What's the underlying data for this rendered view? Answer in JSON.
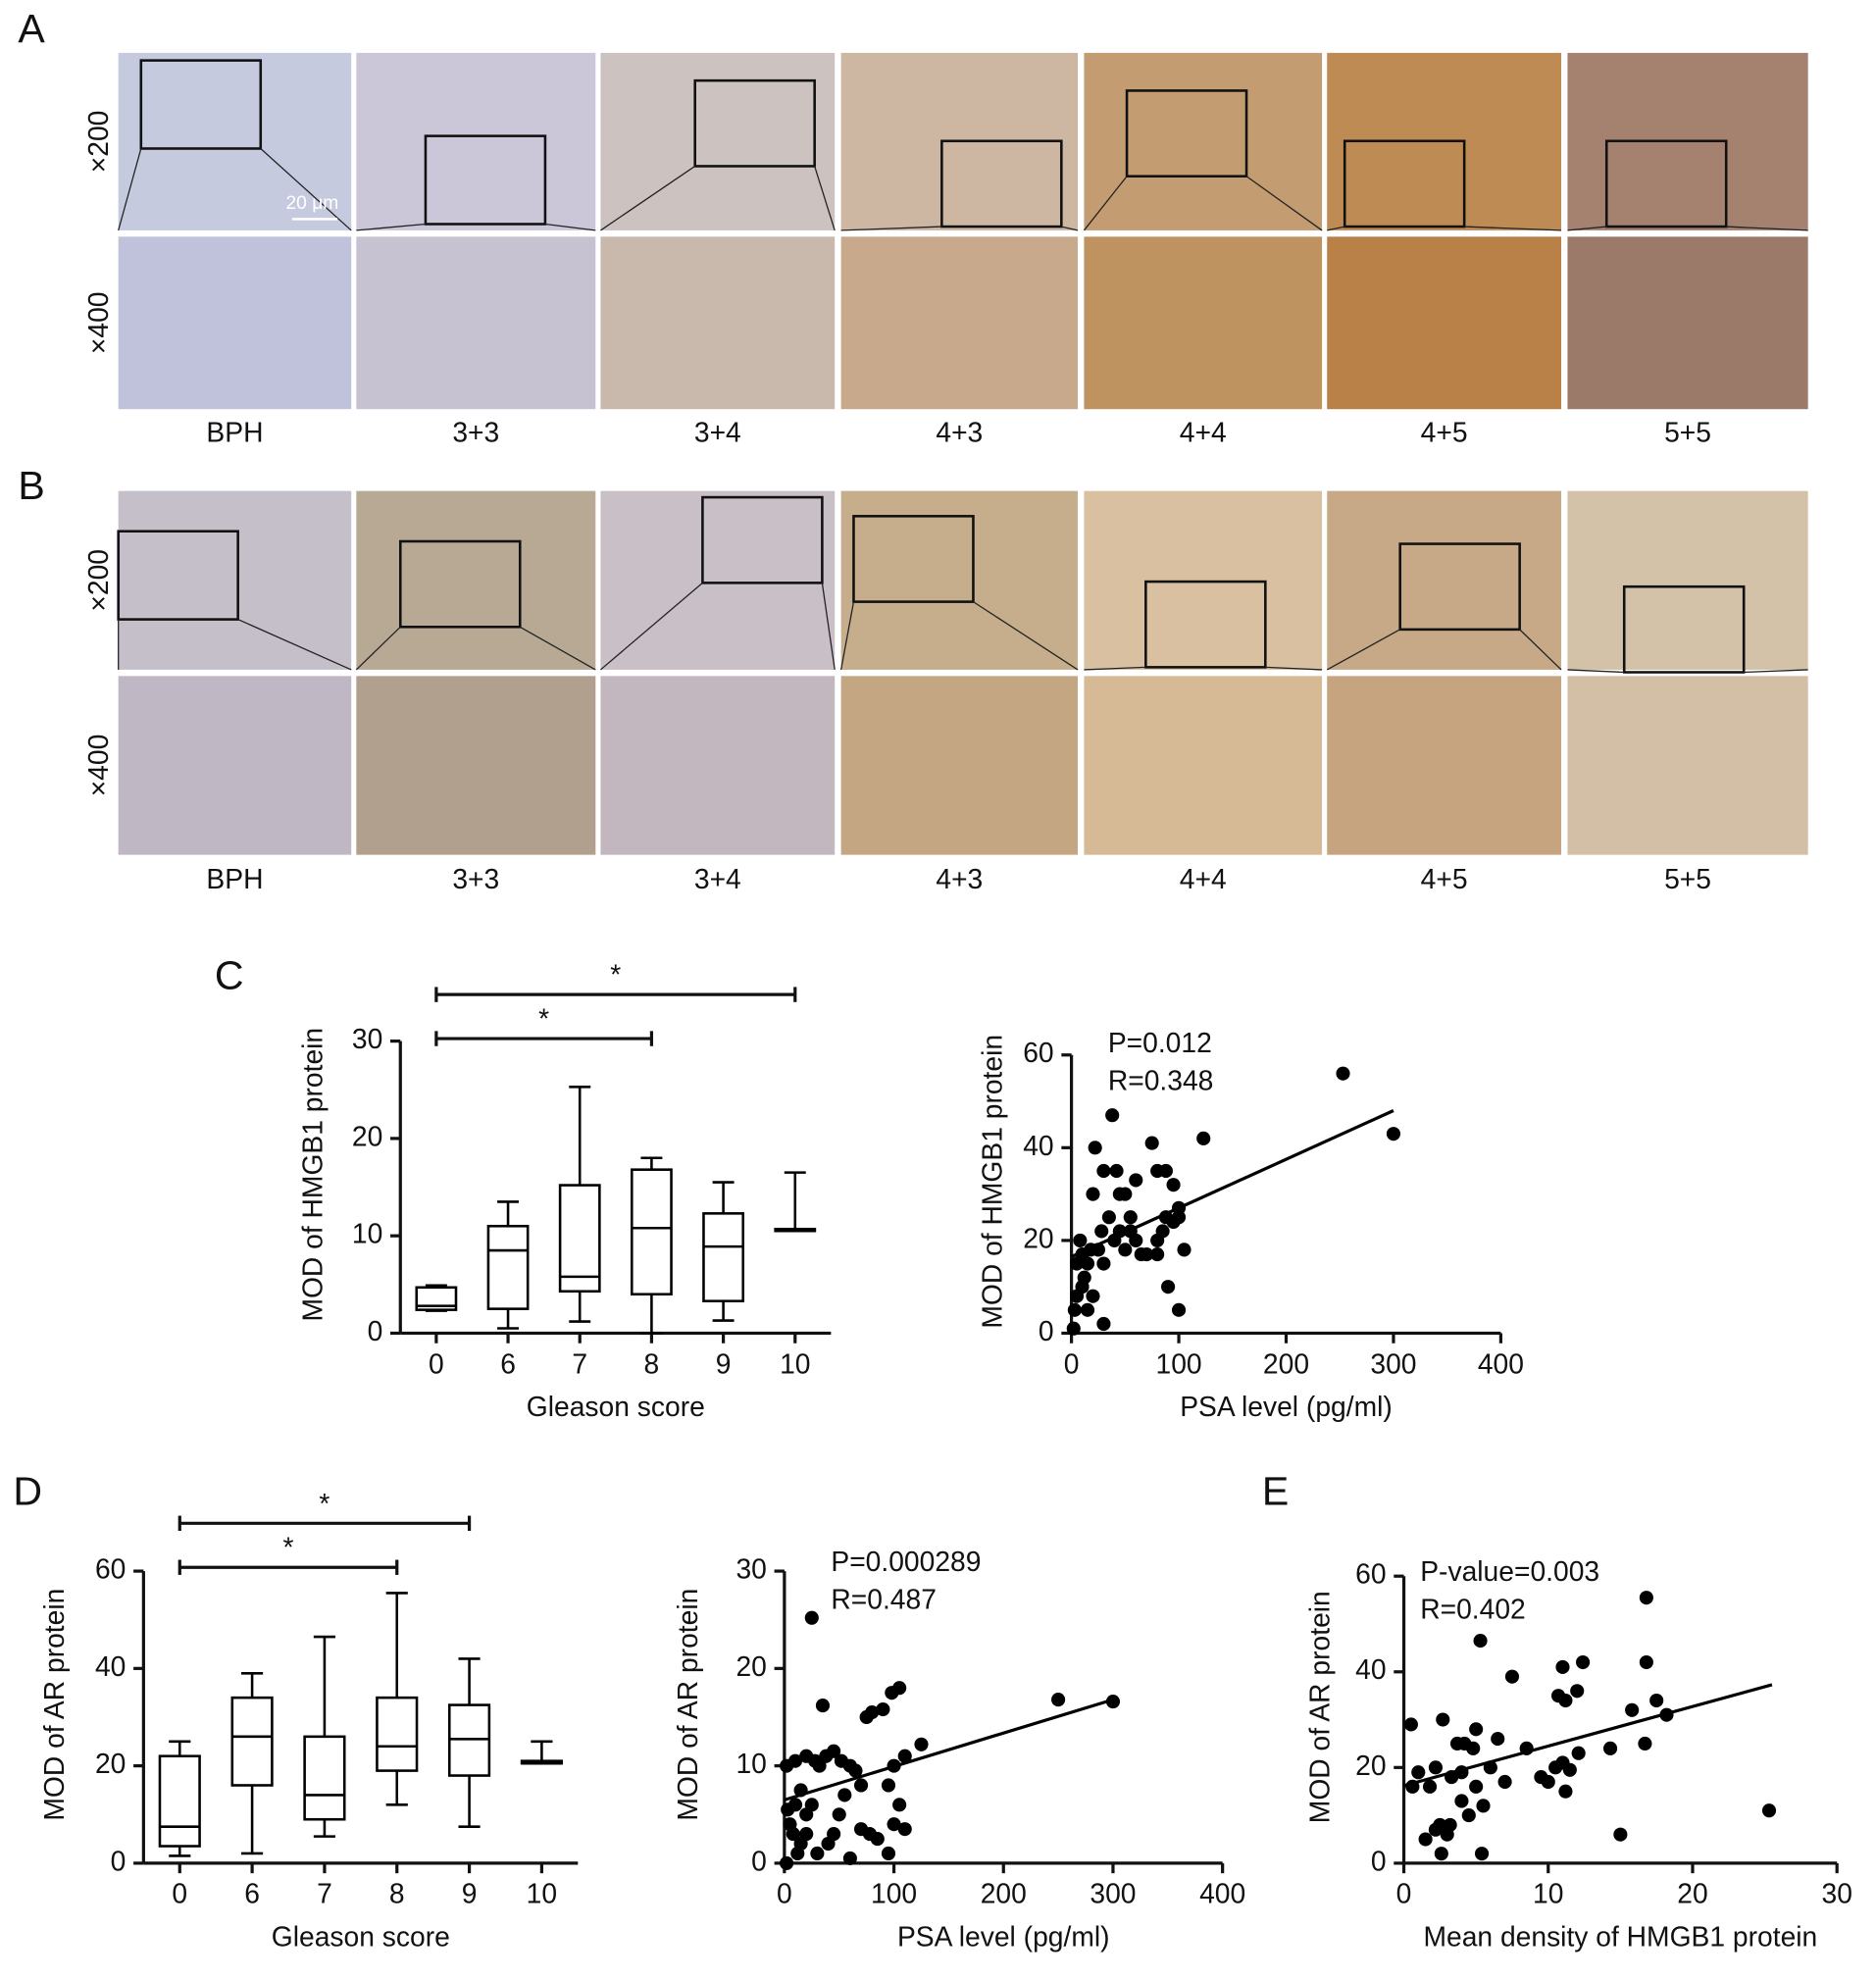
{
  "panels": [
    {
      "letter": "A",
      "magnifications": [
        "×200",
        "×400"
      ],
      "scale_bar": "20 μm",
      "labels": [
        "BPH",
        "3+3",
        "3+4",
        "4+3",
        "4+4",
        "4+5",
        "5+5"
      ]
    },
    {
      "letter": "B",
      "magnifications": [
        "×200",
        "×400"
      ],
      "labels": [
        "BPH",
        "3+3",
        "3+4",
        "4+3",
        "4+4",
        "4+5",
        "5+5"
      ]
    }
  ],
  "chart_data": [
    {
      "type": "box",
      "panel": "C",
      "x_label": "Gleason score",
      "y_label": "MOD of HMGB1 protein",
      "categories": [
        "0",
        "6",
        "7",
        "8",
        "9",
        "10"
      ],
      "boxes": [
        {
          "min": 2.3,
          "q1": 2.4,
          "median": 2.8,
          "q3": 4.7,
          "max": 4.9
        },
        {
          "min": 0.5,
          "q1": 2.5,
          "median": 8.5,
          "q3": 11.0,
          "max": 13.5
        },
        {
          "min": 1.2,
          "q1": 4.3,
          "median": 5.8,
          "q3": 15.2,
          "max": 25.3
        },
        {
          "min": 0,
          "q1": 4.0,
          "median": 10.8,
          "q3": 16.8,
          "max": 18.0
        },
        {
          "min": 1.3,
          "q1": 3.3,
          "median": 8.9,
          "q3": 12.3,
          "max": 15.5
        },
        {
          "min": 10.5,
          "q1": 10.5,
          "median": 10.5,
          "q3": 10.7,
          "max": 16.5
        }
      ],
      "significance": [
        {
          "from": "0",
          "to": "10",
          "label": "*"
        },
        {
          "from": "0",
          "to": "8",
          "label": "*"
        }
      ],
      "ylim": [
        0,
        30
      ],
      "yticks": [
        0,
        10,
        20,
        30
      ],
      "color": "#000000"
    },
    {
      "type": "scatter",
      "x_label": "PSA level (pg/ml)",
      "y_label": "MOD of HMGB1 protein",
      "annotations": [
        "P=0.012",
        "R=0.348"
      ],
      "x": [
        253,
        300,
        123,
        38,
        22,
        30,
        42,
        50,
        60,
        75,
        80,
        88,
        95,
        100,
        95,
        88,
        85,
        80,
        70,
        65,
        60,
        55,
        50,
        45,
        40,
        35,
        30,
        28,
        25,
        20,
        18,
        15,
        12,
        10,
        8,
        5,
        5,
        3,
        2,
        10,
        15,
        20,
        30,
        100,
        90,
        105,
        100,
        80,
        55,
        45
      ],
      "y": [
        56,
        43,
        42,
        47,
        40,
        35,
        35,
        30,
        33,
        41,
        35,
        35,
        32,
        27,
        24,
        25,
        22,
        20,
        17,
        17,
        20,
        22,
        18,
        22,
        20,
        25,
        15,
        22,
        18,
        30,
        18,
        15,
        12,
        17,
        20,
        15,
        8,
        5,
        1,
        10,
        5,
        8,
        2,
        5,
        10,
        18,
        25,
        17,
        25,
        30
      ],
      "fit_line": {
        "x": [
          0,
          300
        ],
        "y": [
          16.5,
          48
        ]
      },
      "xlim": [
        0,
        400
      ],
      "xticks": [
        0,
        100,
        200,
        300,
        400
      ],
      "ylim": [
        0,
        60
      ],
      "yticks": [
        0,
        20,
        40,
        60
      ],
      "color": "#000000"
    },
    {
      "type": "box",
      "panel": "D",
      "x_label": "Gleason score",
      "y_label": "MOD of AR protein",
      "categories": [
        "0",
        "6",
        "7",
        "8",
        "9",
        "10"
      ],
      "boxes": [
        {
          "min": 1.5,
          "q1": 3.5,
          "median": 7.5,
          "q3": 22.0,
          "max": 25.0
        },
        {
          "min": 2.0,
          "q1": 16.0,
          "median": 26.0,
          "q3": 34.0,
          "max": 39.0
        },
        {
          "min": 5.5,
          "q1": 9.0,
          "median": 14.0,
          "q3": 26.0,
          "max": 46.5
        },
        {
          "min": 12.0,
          "q1": 19.0,
          "median": 24.0,
          "q3": 34.0,
          "max": 55.5
        },
        {
          "min": 7.5,
          "q1": 18.0,
          "median": 25.5,
          "q3": 32.5,
          "max": 42.0
        },
        {
          "min": 20.5,
          "q1": 20.5,
          "median": 20.5,
          "q3": 21.0,
          "max": 25.0
        }
      ],
      "significance": [
        {
          "from": "0",
          "to": "9",
          "label": "*"
        },
        {
          "from": "0",
          "to": "8",
          "label": "*"
        }
      ],
      "ylim": [
        0,
        60
      ],
      "yticks": [
        0,
        20,
        40,
        60
      ],
      "color": "#000000"
    },
    {
      "type": "scatter",
      "x_label": "PSA level (pg/ml)",
      "y_label": "MOD of AR protein",
      "annotations": [
        "P=0.000289",
        "R=0.487"
      ],
      "x": [
        25,
        250,
        300,
        125,
        105,
        98,
        80,
        75,
        90,
        35,
        10,
        2,
        20,
        28,
        32,
        38,
        45,
        52,
        60,
        65,
        70,
        100,
        110,
        95,
        15,
        20,
        25,
        10,
        5,
        3,
        8,
        15,
        20,
        30,
        40,
        45,
        60,
        70,
        78,
        85,
        95,
        100,
        105,
        110,
        50,
        12,
        2,
        55
      ],
      "y": [
        25.2,
        16.8,
        16.6,
        12.2,
        18,
        17.5,
        15.5,
        15,
        15.8,
        16.2,
        10.5,
        10,
        11,
        10.5,
        10,
        11,
        11.5,
        10.5,
        10,
        9.5,
        8,
        10,
        11,
        8,
        7.5,
        5,
        6,
        6,
        4,
        5.5,
        3,
        2,
        3,
        1,
        2,
        3,
        0.5,
        3.5,
        3,
        2.5,
        1,
        4,
        6,
        3.5,
        5,
        1,
        0,
        7
      ],
      "fit_line": {
        "x": [
          0,
          300
        ],
        "y": [
          6.5,
          16.8
        ]
      },
      "xlim": [
        0,
        400
      ],
      "xticks": [
        0,
        100,
        200,
        300,
        400
      ],
      "ylim": [
        0,
        30
      ],
      "yticks": [
        0,
        10,
        20,
        30
      ],
      "color": "#000000"
    },
    {
      "type": "scatter",
      "panel": "E",
      "x_label": "Mean density of HMGB1 protein",
      "y_label": "MOD of AR protein",
      "annotations": [
        "P-value=0.003",
        "R=0.402"
      ],
      "x": [
        16.8,
        5.3,
        7.5,
        12.4,
        11,
        12,
        10.7,
        11.2,
        15.8,
        17.5,
        18.2,
        16.8,
        16.7,
        14.3,
        12.1,
        11,
        10.5,
        11.5,
        10,
        11.2,
        9.5,
        8.5,
        6.5,
        5,
        4.2,
        4.8,
        2.7,
        3.7,
        0.5,
        1,
        2.2,
        3.3,
        4,
        5,
        6,
        5.5,
        4.5,
        3.2,
        2.5,
        2.2,
        1.5,
        2.6,
        5.4,
        0.6,
        15,
        25.3,
        1.8,
        7,
        3,
        4
      ],
      "y": [
        55.5,
        46.5,
        39,
        42,
        41,
        36,
        35,
        34,
        32,
        34,
        31,
        42,
        25,
        24,
        23,
        21,
        20,
        19.5,
        17,
        15,
        18,
        24,
        26,
        28,
        25,
        24,
        30,
        25,
        29,
        19,
        20,
        18,
        19,
        16,
        20,
        12,
        10,
        8,
        8,
        7,
        5,
        2,
        2,
        16,
        6,
        11,
        16,
        17,
        6,
        13
      ],
      "fit_line": {
        "x": [
          0,
          25.5
        ],
        "y": [
          16.2,
          37.3
        ]
      },
      "xlim": [
        0,
        30
      ],
      "xticks": [
        0,
        10,
        20,
        30
      ],
      "ylim": [
        0,
        60
      ],
      "yticks": [
        0,
        20,
        40,
        60
      ],
      "color": "#000000"
    }
  ]
}
